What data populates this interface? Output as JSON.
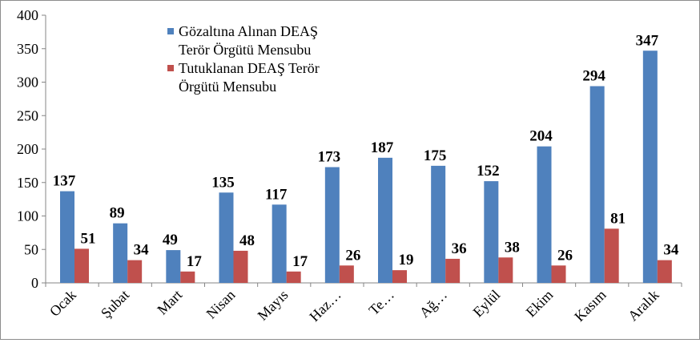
{
  "chart_data": {
    "type": "bar",
    "title": "",
    "xlabel": "",
    "ylabel": "",
    "ylim": [
      0,
      400
    ],
    "yticks": [
      0,
      50,
      100,
      150,
      200,
      250,
      300,
      350,
      400
    ],
    "grid": false,
    "legend_position": "top-left",
    "categories": [
      "Ocak",
      "Şubat",
      "Mart",
      "Nisan",
      "Mayıs",
      "Haz…",
      "Te…",
      "Ağ…",
      "Eylül",
      "Ekim",
      "Kasım",
      "Aralık"
    ],
    "series": [
      {
        "name_lines": [
          "Gözaltına Alınan DEAŞ",
          "Terör Örgütü Mensubu"
        ],
        "color": "#4f81bd",
        "values": [
          137,
          89,
          49,
          135,
          117,
          173,
          187,
          175,
          152,
          204,
          294,
          347
        ]
      },
      {
        "name_lines": [
          "Tutuklanan DEAŞ Terör",
          "Örgütü Mensubu"
        ],
        "color": "#c0504d",
        "values": [
          51,
          34,
          17,
          48,
          17,
          26,
          19,
          36,
          38,
          26,
          81,
          34
        ]
      }
    ]
  }
}
